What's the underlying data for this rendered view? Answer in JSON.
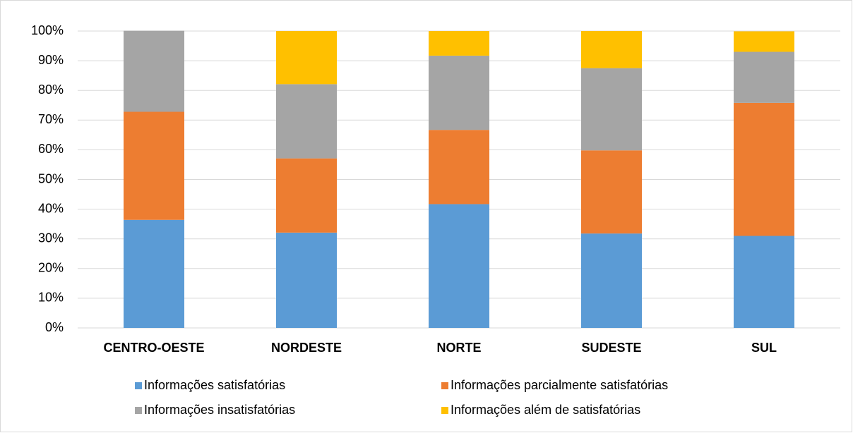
{
  "chart_data": {
    "type": "stacked_bar",
    "categories": [
      "CENTRO-OESTE",
      "NORDESTE",
      "NORTE",
      "SUDESTE",
      "SUL"
    ],
    "series": [
      {
        "name": "Informações satisfatórias",
        "color": "#5b9bd5",
        "values": [
          36.4,
          32.1,
          41.7,
          31.8,
          31.0
        ]
      },
      {
        "name": "Informações parcialmente satisfatórias",
        "color": "#ed7d31",
        "values": [
          36.4,
          25.0,
          25.0,
          28.0,
          44.8
        ]
      },
      {
        "name": "Informações insatisfatórias",
        "color": "#a5a5a5",
        "values": [
          27.3,
          25.0,
          25.0,
          27.7,
          17.2
        ]
      },
      {
        "name": "Informações além de satisfatórias",
        "color": "#ffc000",
        "values": [
          0,
          17.9,
          8.3,
          12.5,
          6.9
        ]
      }
    ],
    "ylim": [
      0,
      100
    ],
    "yticks": [
      {
        "value": 0,
        "label": "0%"
      },
      {
        "value": 10,
        "label": "10%"
      },
      {
        "value": 20,
        "label": "20%"
      },
      {
        "value": 30,
        "label": "30%"
      },
      {
        "value": 40,
        "label": "40%"
      },
      {
        "value": 50,
        "label": "50%"
      },
      {
        "value": 60,
        "label": "60%"
      },
      {
        "value": 70,
        "label": "70%"
      },
      {
        "value": 80,
        "label": "80%"
      },
      {
        "value": 90,
        "label": "90%"
      },
      {
        "value": 100,
        "label": "100%"
      }
    ],
    "grid": true,
    "legend": "bottom"
  }
}
